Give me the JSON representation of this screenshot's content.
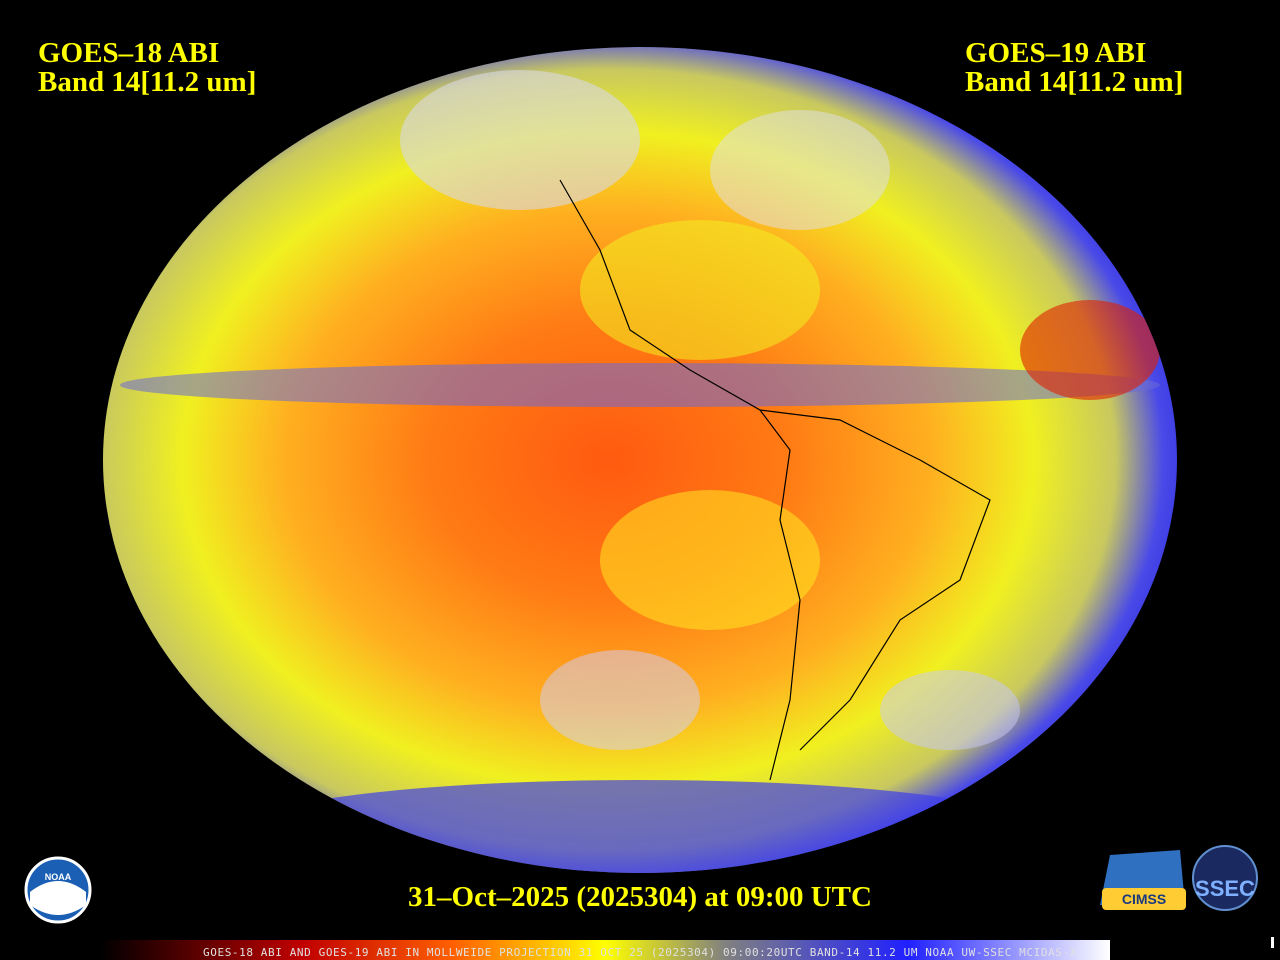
{
  "header": {
    "left": {
      "lines": [
        "GOES–18 ABI",
        "Band 14[11.2 um]"
      ]
    },
    "right": {
      "lines": [
        "GOES–19 ABI",
        "Band 14[11.2 um]"
      ]
    }
  },
  "footer": {
    "date": "31–Oct–2025 (2025304) at 09:00 UTC",
    "banner": "GOES-18 ABI AND GOES-19 ABI IN MOLLWEIDE PROJECTION 31 OCT 25 (2025304) 09:00:20UTC BAND-14 11.2 UM NOAA UW-SSEC MCIDAS-X"
  },
  "logos": {
    "noaa": "NOAA",
    "cimss": "CIMSS",
    "ssec": "SSEC"
  }
}
